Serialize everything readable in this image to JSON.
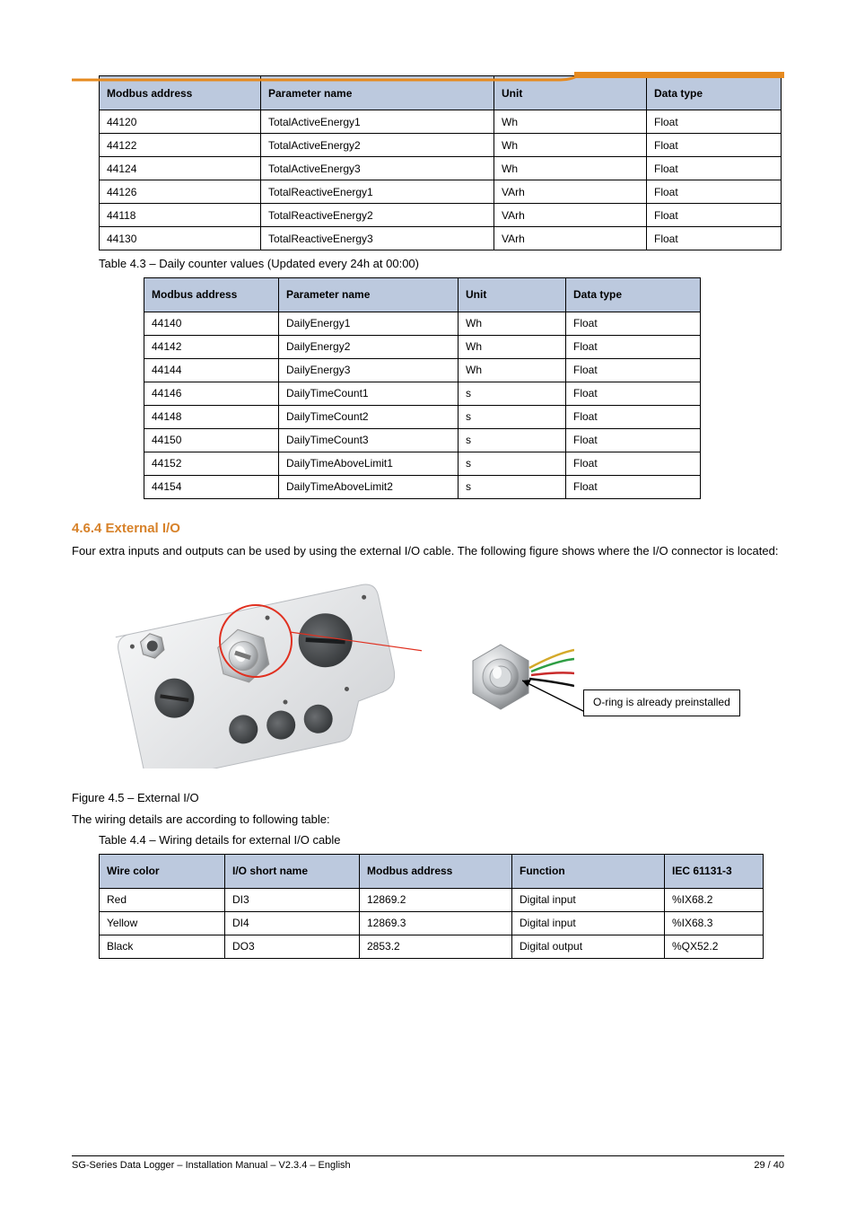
{
  "header_rule_color": "#e68a1f",
  "table1": {
    "columns": [
      "Modbus address",
      "Parameter name",
      "Unit",
      "Data type"
    ],
    "col_widths": [
      "180px",
      "260px",
      "170px",
      "150px"
    ],
    "rows": [
      [
        "44120",
        "TotalActiveEnergy1",
        "Wh",
        "Float"
      ],
      [
        "44122",
        "TotalActiveEnergy2",
        "Wh",
        "Float"
      ],
      [
        "44124",
        "TotalActiveEnergy3",
        "Wh",
        "Float"
      ],
      [
        "44126",
        "TotalReactiveEnergy1",
        "VArh",
        "Float"
      ],
      [
        "44118",
        "TotalReactiveEnergy2",
        "VArh",
        "Float"
      ],
      [
        "44130",
        "TotalReactiveEnergy3",
        "VArh",
        "Float"
      ]
    ]
  },
  "sec1_caption": "Table 4.3 – Daily counter values (Updated every 24h at 00:00)",
  "table2": {
    "columns": [
      "Modbus address",
      "Parameter name",
      "Unit",
      "Data type"
    ],
    "col_widths": [
      "150px",
      "200px",
      "120px",
      "150px"
    ],
    "rows": [
      [
        "44140",
        "DailyEnergy1",
        "Wh",
        "Float"
      ],
      [
        "44142",
        "DailyEnergy2",
        "Wh",
        "Float"
      ],
      [
        "44144",
        "DailyEnergy3",
        "Wh",
        "Float"
      ],
      [
        "44146",
        "DailyTimeCount1",
        "s",
        "Float"
      ],
      [
        "44148",
        "DailyTimeCount2",
        "s",
        "Float"
      ],
      [
        "44150",
        "DailyTimeCount3",
        "s",
        "Float"
      ],
      [
        "44152",
        "DailyTimeAboveLimit1",
        "s",
        "Float"
      ],
      [
        "44154",
        "DailyTimeAboveLimit2",
        "s",
        "Float"
      ]
    ]
  },
  "sec2_title": "4.6.4 External I/O",
  "sec2_p1": "Four extra inputs and outputs can be used by using the external I/O cable. The following figure shows where the I/O connector is located:",
  "callout": "O-ring is already preinstalled",
  "figure_caption": "Figure 4.5 – External I/O",
  "sec2_p2": "The wiring details are according to following table:",
  "table3_caption": "Table 4.4 – Wiring details for external I/O cable",
  "table3": {
    "columns": [
      "Wire color",
      "I/O short name",
      "Modbus address",
      "Function",
      "IEC 61131-3"
    ],
    "col_widths": [
      "140px",
      "150px",
      "170px",
      "170px",
      "110px"
    ],
    "rows": [
      [
        "Red",
        "DI3",
        "12869.2",
        "Digital input",
        "%IX68.2"
      ],
      [
        "Yellow",
        "DI4",
        "12869.3",
        "Digital input",
        "%IX68.3"
      ],
      [
        "Black",
        "DO3",
        "2853.2",
        "Digital output",
        "%QX52.2"
      ]
    ]
  },
  "footer_left": "SG-Series Data Logger – Installation Manual – V2.3.4 – English",
  "footer_right": "29 / 40",
  "colors": {
    "header_bg": "#bcc9de",
    "heading_text": "#d7822a"
  }
}
